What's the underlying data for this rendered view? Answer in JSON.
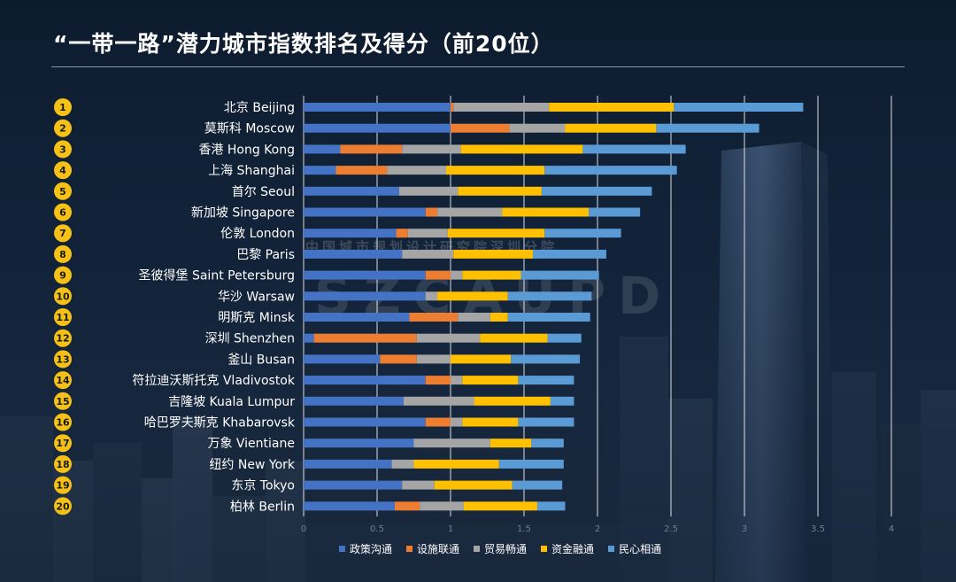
{
  "title": "“一带一路”潜力城市指数排名及得分（前20位）",
  "watermark": {
    "line1": "中国城市规划设计研究院深圳分院",
    "line2": "SZCAUPD"
  },
  "colors": {
    "policy": "#4472c4",
    "facility": "#ed7d31",
    "trade": "#a5a5a5",
    "finance": "#ffc000",
    "people": "#5b9bd5",
    "rank_badge": "#f5c116",
    "grid": "#ffffff"
  },
  "chart_data": {
    "type": "bar",
    "orientation": "horizontal",
    "stacked": true,
    "title": "“一带一路”潜力城市指数排名及得分（前20位）",
    "xlim": [
      0,
      4
    ],
    "xticks": [
      0,
      0.5,
      1,
      1.5,
      2,
      2.5,
      3,
      3.5,
      4
    ],
    "xtick_labels": [
      "0",
      "0.5",
      "1",
      "1.5",
      "2",
      "2.5",
      "3",
      "3.5",
      "4"
    ],
    "ranks": [
      "1",
      "2",
      "3",
      "4",
      "5",
      "6",
      "7",
      "8",
      "9",
      "10",
      "11",
      "12",
      "13",
      "14",
      "15",
      "16",
      "17",
      "18",
      "19",
      "20"
    ],
    "categories": [
      "北京 Beijing",
      "莫斯科 Moscow",
      "香港 Hong Kong",
      "上海 Shanghai",
      "首尔 Seoul",
      "新加坡 Singapore",
      "伦敦 London",
      "巴黎 Paris",
      "圣彼得堡 Saint Petersburg",
      "华沙 Warsaw",
      "明斯克 Minsk",
      "深圳 Shenzhen",
      "釜山 Busan",
      "符拉迪沃斯托克 Vladivostok",
      "吉隆坡 Kuala Lumpur",
      "哈巴罗夫斯克 Khabarovsk",
      "万象 Vientiane",
      "纽约 New York",
      "东京 Tokyo",
      "柏林 Berlin"
    ],
    "series": [
      {
        "name": "政策沟通",
        "color_key": "policy",
        "values": [
          1.0,
          1.0,
          0.25,
          0.22,
          0.65,
          0.83,
          0.63,
          0.67,
          0.83,
          0.83,
          0.72,
          0.07,
          0.52,
          0.83,
          0.68,
          0.83,
          0.75,
          0.6,
          0.67,
          0.62
        ]
      },
      {
        "name": "设施联通",
        "color_key": "facility",
        "values": [
          0.02,
          0.4,
          0.42,
          0.35,
          0.0,
          0.08,
          0.08,
          0.0,
          0.17,
          0.0,
          0.33,
          0.7,
          0.25,
          0.17,
          0.0,
          0.17,
          0.0,
          0.0,
          0.0,
          0.17
        ]
      },
      {
        "name": "贸易畅通",
        "color_key": "trade",
        "values": [
          0.65,
          0.38,
          0.4,
          0.4,
          0.4,
          0.44,
          0.27,
          0.35,
          0.08,
          0.08,
          0.22,
          0.43,
          0.23,
          0.08,
          0.48,
          0.08,
          0.52,
          0.15,
          0.22,
          0.3
        ]
      },
      {
        "name": "资金融通",
        "color_key": "finance",
        "values": [
          0.85,
          0.62,
          0.83,
          0.67,
          0.57,
          0.59,
          0.66,
          0.54,
          0.4,
          0.48,
          0.12,
          0.46,
          0.41,
          0.38,
          0.52,
          0.38,
          0.28,
          0.58,
          0.53,
          0.5
        ]
      },
      {
        "name": "民心相通",
        "color_key": "people",
        "values": [
          0.88,
          0.7,
          0.7,
          0.9,
          0.75,
          0.35,
          0.52,
          0.5,
          0.53,
          0.57,
          0.56,
          0.23,
          0.47,
          0.38,
          0.16,
          0.38,
          0.22,
          0.44,
          0.34,
          0.19
        ]
      }
    ],
    "legend_position": "bottom"
  }
}
